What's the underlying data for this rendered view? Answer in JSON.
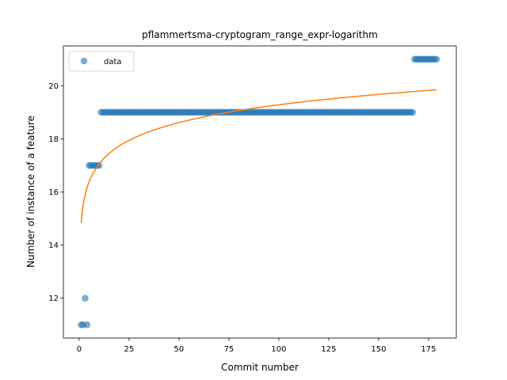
{
  "chart_data": {
    "type": "scatter",
    "title": "pflammertsma-cryptogram_range_expr-logarithm",
    "xlabel": "Commit number",
    "ylabel": "Number of instance of a feature",
    "xlim": [
      -7.9,
      188.9
    ],
    "ylim": [
      10.5,
      21.5
    ],
    "xticks": [
      0,
      25,
      50,
      75,
      100,
      125,
      150,
      175
    ],
    "yticks": [
      12,
      14,
      16,
      18,
      20
    ],
    "grid": false,
    "legend": {
      "placement": "upper-left",
      "entries": [
        "data"
      ]
    },
    "series": [
      {
        "name": "data",
        "kind": "scatter",
        "color": "#1f77b4",
        "segments": [
          {
            "x_from": 1,
            "x_to": 2,
            "y": 11
          },
          {
            "x_from": 3,
            "x_to": 3,
            "y": 12
          },
          {
            "x_from": 4,
            "x_to": 4,
            "y": 11
          },
          {
            "x_from": 5,
            "x_to": 10,
            "y": 17
          },
          {
            "x_from": 11,
            "x_to": 167,
            "y": 19
          },
          {
            "x_from": 168,
            "x_to": 179,
            "y": 21
          }
        ]
      },
      {
        "kind": "line",
        "color": "#ff7f0e",
        "model": "logarithmic",
        "coefficients": {
          "a": 14.83,
          "b": 0.9668
        },
        "x_range": [
          1,
          179
        ]
      }
    ]
  }
}
